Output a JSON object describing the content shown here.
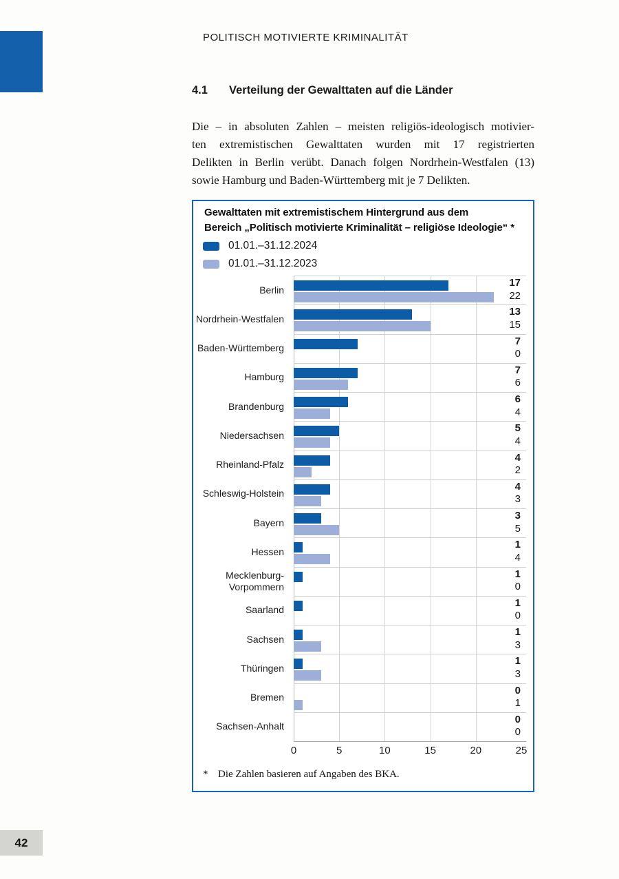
{
  "header": {
    "text": "POLITISCH MOTIVIERTE KRIMINALITÄT"
  },
  "section": {
    "number": "4.1",
    "title": "Verteilung der Gewalttaten auf die Länder"
  },
  "paragraph": {
    "lines": [
      "Die – in absoluten Zahlen – meisten religiös-ideologisch motivier-",
      "ten extremistischen Gewalttaten wurden mit 17 registrierten",
      "Delikten in Berlin verübt. Danach folgen Nordrhein-Westfalen (13)",
      "sowie Hamburg und Baden-Württemberg mit je 7 Delikten."
    ]
  },
  "figure": {
    "title_lines": [
      "Gewalttaten mit extremistischem Hintergrund aus dem",
      "Bereich „Politisch motivierte Kriminalität – religiöse Ideologie“ *"
    ],
    "legend": [
      {
        "label": "01.01.–31.12.2024",
        "color": "#0d5ca8"
      },
      {
        "label": "01.01.–31.12.2023",
        "color": "#9dafd9"
      }
    ],
    "axis_ticks": [
      "0",
      "5",
      "10",
      "15",
      "20",
      "25"
    ],
    "display_label_overrides": {
      "Mecklenburg-Vorpommern": "Mecklenburg-\nVorpommern"
    },
    "footnote_marker": "*",
    "footnote_text": "Die Zahlen basieren auf Angaben des BKA.",
    "border_color": "#1b63b0"
  },
  "chart_data": {
    "type": "bar",
    "orientation": "horizontal",
    "title": "Gewalttaten mit extremistischem Hintergrund aus dem Bereich „Politisch motivierte Kriminalität – religiöse Ideologie“ *",
    "categories": [
      "Berlin",
      "Nordrhein-Westfalen",
      "Baden-Württemberg",
      "Hamburg",
      "Brandenburg",
      "Niedersachsen",
      "Rheinland-Pfalz",
      "Schleswig-Holstein",
      "Bayern",
      "Hessen",
      "Mecklenburg-Vorpommern",
      "Saarland",
      "Sachsen",
      "Thüringen",
      "Bremen",
      "Sachsen-Anhalt"
    ],
    "series": [
      {
        "name": "01.01.–31.12.2024",
        "color": "#0d5ca8",
        "values": [
          17,
          13,
          7,
          7,
          6,
          5,
          4,
          4,
          3,
          1,
          1,
          1,
          1,
          1,
          0,
          0
        ]
      },
      {
        "name": "01.01.–31.12.2023",
        "color": "#9dafd9",
        "values": [
          22,
          15,
          0,
          6,
          4,
          4,
          2,
          3,
          5,
          4,
          0,
          0,
          3,
          3,
          1,
          0
        ]
      }
    ],
    "xlim": [
      0,
      25
    ],
    "xticks": [
      0,
      5,
      10,
      15,
      20,
      25
    ],
    "grid": true,
    "value_labels_shown": true,
    "legend_position": "top-left",
    "footnote": "* Die Zahlen basieren auf Angaben des BKA."
  },
  "page": {
    "number": "42"
  }
}
